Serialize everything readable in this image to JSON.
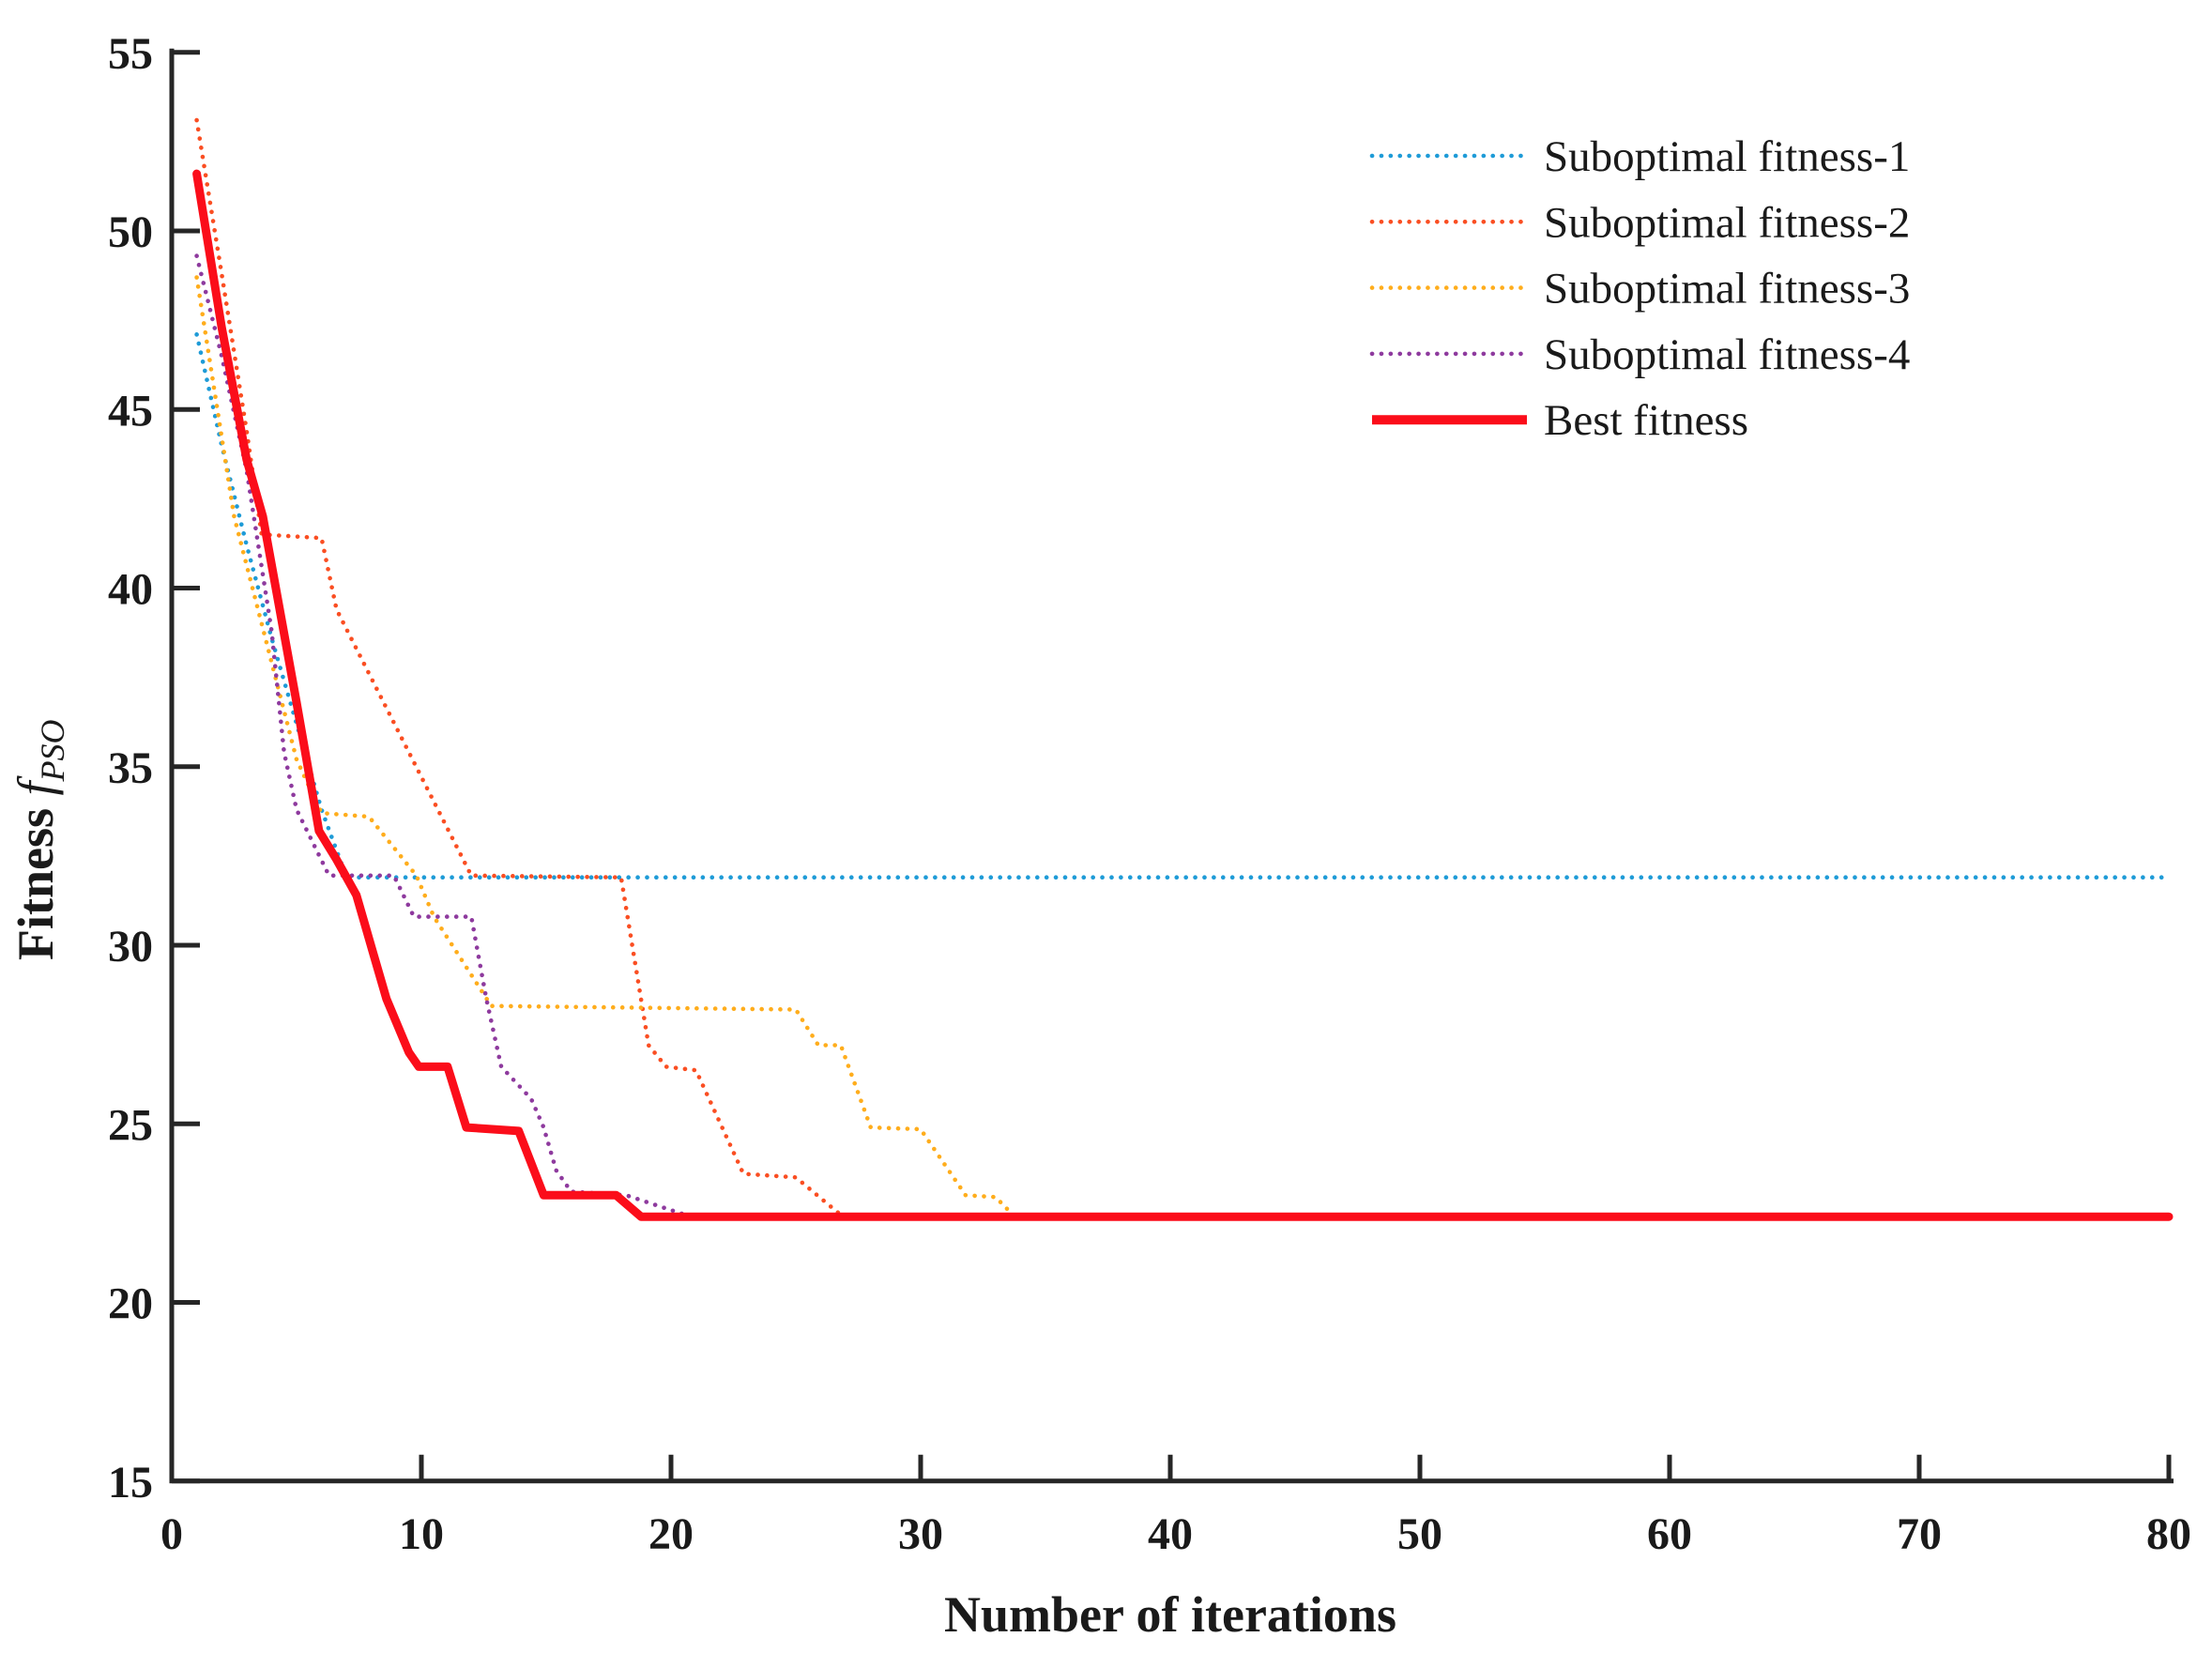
{
  "figure": {
    "background": "#ffffff",
    "text_color": "#1a1a1a",
    "axis_color": "#262626"
  },
  "chart_data": {
    "type": "line",
    "title": "",
    "xlabel": "Number of iterations",
    "ylabel": {
      "prefix": "Fitness",
      "symbol": "f",
      "subscript": "PSO"
    },
    "xlim": [
      0,
      80
    ],
    "ylim": [
      15,
      55
    ],
    "x_ticks": [
      0,
      10,
      20,
      30,
      40,
      50,
      60,
      70,
      80
    ],
    "y_ticks": [
      15,
      20,
      25,
      30,
      35,
      40,
      45,
      50,
      55
    ],
    "grid": false,
    "legend_position": "upper-right",
    "series": [
      {
        "name": "Suboptimal fitness-1",
        "color": "#1E9BD7",
        "style": "dotted",
        "points": [
          [
            1,
            47.1
          ],
          [
            2,
            44.0
          ],
          [
            3,
            41.2
          ],
          [
            4,
            38.6
          ],
          [
            5,
            36.2
          ],
          [
            6,
            33.8
          ],
          [
            7,
            31.9
          ],
          [
            80,
            31.9
          ]
        ]
      },
      {
        "name": "Suboptimal fitness-2",
        "color": "#FA4E22",
        "style": "dotted",
        "points": [
          [
            1,
            53.1
          ],
          [
            2,
            48.8
          ],
          [
            3,
            44.4
          ],
          [
            3.6,
            41.5
          ],
          [
            6,
            41.4
          ],
          [
            6.6,
            39.4
          ],
          [
            12,
            31.95
          ],
          [
            18,
            31.9
          ],
          [
            19.1,
            27.2
          ],
          [
            19.8,
            26.6
          ],
          [
            21,
            26.5
          ],
          [
            22.9,
            23.6
          ],
          [
            25,
            23.5
          ],
          [
            26.8,
            22.45
          ],
          [
            80,
            22.4
          ]
        ]
      },
      {
        "name": "Suboptimal fitness-3",
        "color": "#FFAD1C",
        "style": "dotted",
        "points": [
          [
            1,
            48.7
          ],
          [
            2.5,
            42.0
          ],
          [
            5,
            35.2
          ],
          [
            6,
            33.7
          ],
          [
            7.9,
            33.6
          ],
          [
            9.8,
            31.95
          ],
          [
            10.5,
            30.8
          ],
          [
            12.8,
            28.3
          ],
          [
            25,
            28.2
          ],
          [
            25.9,
            27.2
          ],
          [
            26.8,
            27.2
          ],
          [
            28,
            24.9
          ],
          [
            30,
            24.85
          ],
          [
            31.8,
            23.0
          ],
          [
            33,
            22.95
          ],
          [
            33.7,
            22.45
          ],
          [
            80,
            22.4
          ]
        ]
      },
      {
        "name": "Suboptimal fitness-4",
        "color": "#8E3A9E",
        "style": "dotted",
        "points": [
          [
            1,
            49.3
          ],
          [
            2,
            46.5
          ],
          [
            3,
            43.3
          ],
          [
            4,
            38.8
          ],
          [
            4.5,
            35.4
          ],
          [
            5,
            33.8
          ],
          [
            6.3,
            31.95
          ],
          [
            8.9,
            31.95
          ],
          [
            9.7,
            30.8
          ],
          [
            12,
            30.8
          ],
          [
            12.6,
            28.5
          ],
          [
            13.2,
            26.6
          ],
          [
            14.4,
            25.7
          ],
          [
            14.9,
            24.9
          ],
          [
            15.4,
            23.7
          ],
          [
            16,
            23.1
          ],
          [
            18.2,
            23.0
          ],
          [
            20.8,
            22.4
          ],
          [
            80,
            22.4
          ]
        ]
      },
      {
        "name": "Best fitness",
        "color": "#FB0D1A",
        "style": "solid",
        "points": [
          [
            1,
            51.6
          ],
          [
            2,
            47.3
          ],
          [
            3,
            43.6
          ],
          [
            3.65,
            42.0
          ],
          [
            5,
            36.8
          ],
          [
            5.9,
            33.2
          ],
          [
            6.6,
            32.4
          ],
          [
            7.4,
            31.4
          ],
          [
            8.1,
            29.7
          ],
          [
            8.6,
            28.5
          ],
          [
            9.5,
            27.0
          ],
          [
            9.9,
            26.6
          ],
          [
            11.05,
            26.6
          ],
          [
            11.8,
            24.9
          ],
          [
            13.9,
            24.8
          ],
          [
            14.9,
            23.0
          ],
          [
            17.8,
            23.0
          ],
          [
            18.8,
            22.4
          ],
          [
            80,
            22.4
          ]
        ]
      }
    ]
  }
}
